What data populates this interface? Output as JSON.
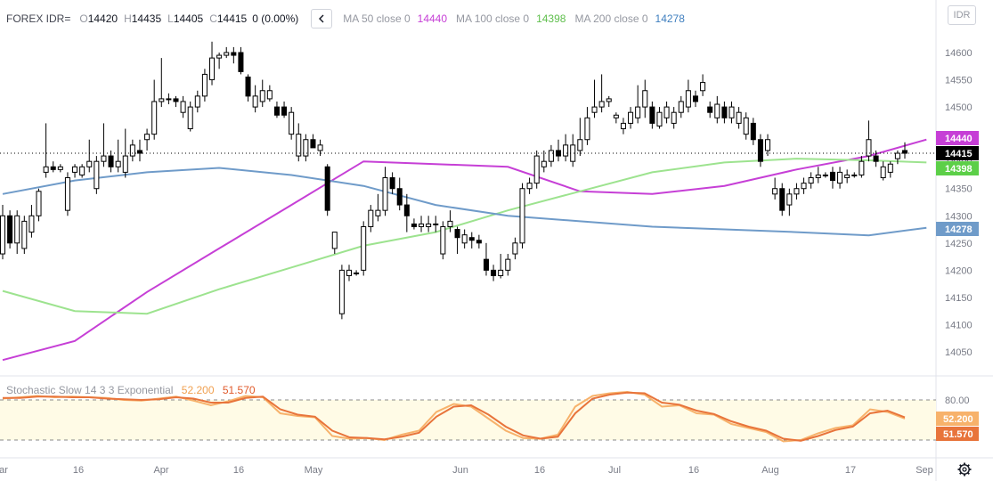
{
  "legend": {
    "symbol": "FOREX IDR=",
    "o_label": "O",
    "o": "14420",
    "h_label": "H",
    "h": "14435",
    "l_label": "L",
    "l": "14405",
    "c_label": "C",
    "c": "14415",
    "change": "0 (0.00%)",
    "collapse_icon": "chevron-left-icon",
    "ma50_label": "MA 50 close 0",
    "ma50_value": "14440",
    "ma100_label": "MA 100 close 0",
    "ma100_value": "14398",
    "ma200_label": "MA 200 close 0",
    "ma200_value": "14278"
  },
  "currency_button": "IDR",
  "stoch_label": "Stochastic Slow 14 3 3 Exponential",
  "stoch_k_value": "52.200",
  "stoch_d_value": "51.570",
  "settings_icon": "gear-icon",
  "colors": {
    "ma50": "#c63fd6",
    "ma100": "#9de38f",
    "ma200": "#6f9bc9",
    "stoch_k": "#f7b26b",
    "stoch_d": "#e8743b",
    "stoch_band": "#fffbe6",
    "last_price": "#000000"
  },
  "chart_data": [
    {
      "type": "candlestick",
      "title": "FOREX IDR=",
      "y_ticks": [
        14050,
        14100,
        14150,
        14200,
        14250,
        14300,
        14350,
        14400,
        14450,
        14500,
        14550,
        14600
      ],
      "ylim": [
        14020,
        14650
      ],
      "x_tick_labels": [
        "ar",
        "16",
        "Apr",
        "16",
        "May",
        "Jun",
        "16",
        "Jul",
        "16",
        "Aug",
        "17",
        "Sep"
      ],
      "last_price": 14415,
      "price_labels": [
        {
          "name": "MA 50",
          "value": 14440
        },
        {
          "name": "last",
          "value": 14415
        },
        {
          "name": "MA 100",
          "value": 14398
        },
        {
          "name": "MA 200",
          "value": 14278
        }
      ],
      "candles": [
        {
          "o": 14230,
          "h": 14320,
          "l": 14220,
          "c": 14300
        },
        {
          "o": 14300,
          "h": 14310,
          "l": 14240,
          "c": 14250
        },
        {
          "o": 14250,
          "h": 14310,
          "l": 14230,
          "c": 14300
        },
        {
          "o": 14240,
          "h": 14300,
          "l": 14230,
          "c": 14290
        },
        {
          "o": 14270,
          "h": 14320,
          "l": 14260,
          "c": 14300
        },
        {
          "o": 14300,
          "h": 14350,
          "l": 14290,
          "c": 14345
        },
        {
          "o": 14380,
          "h": 14470,
          "l": 14370,
          "c": 14390
        },
        {
          "o": 14390,
          "h": 14400,
          "l": 14380,
          "c": 14385
        },
        {
          "o": 14385,
          "h": 14395,
          "l": 14380,
          "c": 14390
        },
        {
          "o": 14310,
          "h": 14380,
          "l": 14300,
          "c": 14370
        },
        {
          "o": 14380,
          "h": 14395,
          "l": 14370,
          "c": 14390
        },
        {
          "o": 14375,
          "h": 14395,
          "l": 14370,
          "c": 14390
        },
        {
          "o": 14390,
          "h": 14440,
          "l": 14380,
          "c": 14400
        },
        {
          "o": 14350,
          "h": 14410,
          "l": 14340,
          "c": 14400
        },
        {
          "o": 14400,
          "h": 14470,
          "l": 14390,
          "c": 14410
        },
        {
          "o": 14410,
          "h": 14420,
          "l": 14380,
          "c": 14390
        },
        {
          "o": 14390,
          "h": 14440,
          "l": 14380,
          "c": 14400
        },
        {
          "o": 14380,
          "h": 14460,
          "l": 14370,
          "c": 14410
        },
        {
          "o": 14410,
          "h": 14440,
          "l": 14400,
          "c": 14430
        },
        {
          "o": 14420,
          "h": 14440,
          "l": 14400,
          "c": 14415
        },
        {
          "o": 14440,
          "h": 14460,
          "l": 14420,
          "c": 14450
        },
        {
          "o": 14450,
          "h": 14550,
          "l": 14440,
          "c": 14510
        },
        {
          "o": 14510,
          "h": 14590,
          "l": 14500,
          "c": 14515
        },
        {
          "o": 14515,
          "h": 14525,
          "l": 14505,
          "c": 14515
        },
        {
          "o": 14515,
          "h": 14520,
          "l": 14500,
          "c": 14510
        },
        {
          "o": 14490,
          "h": 14520,
          "l": 14480,
          "c": 14510
        },
        {
          "o": 14460,
          "h": 14510,
          "l": 14455,
          "c": 14500
        },
        {
          "o": 14500,
          "h": 14530,
          "l": 14490,
          "c": 14520
        },
        {
          "o": 14520,
          "h": 14570,
          "l": 14510,
          "c": 14560
        },
        {
          "o": 14550,
          "h": 14620,
          "l": 14540,
          "c": 14590
        },
        {
          "o": 14590,
          "h": 14600,
          "l": 14570,
          "c": 14595
        },
        {
          "o": 14595,
          "h": 14610,
          "l": 14590,
          "c": 14600
        },
        {
          "o": 14600,
          "h": 14610,
          "l": 14580,
          "c": 14595
        },
        {
          "o": 14600,
          "h": 14610,
          "l": 14560,
          "c": 14565
        },
        {
          "o": 14555,
          "h": 14560,
          "l": 14510,
          "c": 14520
        },
        {
          "o": 14500,
          "h": 14540,
          "l": 14490,
          "c": 14520
        },
        {
          "o": 14510,
          "h": 14550,
          "l": 14500,
          "c": 14530
        },
        {
          "o": 14515,
          "h": 14540,
          "l": 14510,
          "c": 14530
        },
        {
          "o": 14500,
          "h": 14510,
          "l": 14480,
          "c": 14485
        },
        {
          "o": 14500,
          "h": 14510,
          "l": 14480,
          "c": 14485
        },
        {
          "o": 14450,
          "h": 14500,
          "l": 14440,
          "c": 14490
        },
        {
          "o": 14410,
          "h": 14470,
          "l": 14400,
          "c": 14450
        },
        {
          "o": 14410,
          "h": 14450,
          "l": 14400,
          "c": 14440
        },
        {
          "o": 14440,
          "h": 14450,
          "l": 14430,
          "c": 14425
        },
        {
          "o": 14420,
          "h": 14440,
          "l": 14410,
          "c": 14430
        },
        {
          "o": 14390,
          "h": 14395,
          "l": 14300,
          "c": 14310
        },
        {
          "o": 14240,
          "h": 14270,
          "l": 14230,
          "c": 14270
        },
        {
          "o": 14120,
          "h": 14210,
          "l": 14110,
          "c": 14200
        },
        {
          "o": 14190,
          "h": 14210,
          "l": 14180,
          "c": 14200
        },
        {
          "o": 14195,
          "h": 14200,
          "l": 14190,
          "c": 14195
        },
        {
          "o": 14200,
          "h": 14290,
          "l": 14190,
          "c": 14280
        },
        {
          "o": 14280,
          "h": 14320,
          "l": 14270,
          "c": 14310
        },
        {
          "o": 14300,
          "h": 14340,
          "l": 14290,
          "c": 14310
        },
        {
          "o": 14310,
          "h": 14390,
          "l": 14300,
          "c": 14370
        },
        {
          "o": 14370,
          "h": 14380,
          "l": 14340,
          "c": 14350
        },
        {
          "o": 14350,
          "h": 14370,
          "l": 14310,
          "c": 14320
        },
        {
          "o": 14320,
          "h": 14340,
          "l": 14270,
          "c": 14300
        },
        {
          "o": 14285,
          "h": 14295,
          "l": 14275,
          "c": 14280
        },
        {
          "o": 14280,
          "h": 14300,
          "l": 14270,
          "c": 14285
        },
        {
          "o": 14280,
          "h": 14300,
          "l": 14270,
          "c": 14285
        },
        {
          "o": 14285,
          "h": 14300,
          "l": 14270,
          "c": 14285
        },
        {
          "o": 14230,
          "h": 14290,
          "l": 14220,
          "c": 14280
        },
        {
          "o": 14280,
          "h": 14310,
          "l": 14270,
          "c": 14290
        },
        {
          "o": 14275,
          "h": 14280,
          "l": 14230,
          "c": 14260
        },
        {
          "o": 14250,
          "h": 14275,
          "l": 14240,
          "c": 14265
        },
        {
          "o": 14260,
          "h": 14270,
          "l": 14240,
          "c": 14255
        },
        {
          "o": 14255,
          "h": 14265,
          "l": 14240,
          "c": 14250
        },
        {
          "o": 14220,
          "h": 14250,
          "l": 14190,
          "c": 14200
        },
        {
          "o": 14200,
          "h": 14210,
          "l": 14180,
          "c": 14190
        },
        {
          "o": 14190,
          "h": 14230,
          "l": 14185,
          "c": 14200
        },
        {
          "o": 14200,
          "h": 14230,
          "l": 14190,
          "c": 14220
        },
        {
          "o": 14230,
          "h": 14260,
          "l": 14220,
          "c": 14250
        },
        {
          "o": 14250,
          "h": 14360,
          "l": 14240,
          "c": 14350
        },
        {
          "o": 14350,
          "h": 14370,
          "l": 14340,
          "c": 14360
        },
        {
          "o": 14360,
          "h": 14420,
          "l": 14350,
          "c": 14410
        },
        {
          "o": 14390,
          "h": 14420,
          "l": 14380,
          "c": 14400
        },
        {
          "o": 14400,
          "h": 14430,
          "l": 14390,
          "c": 14420
        },
        {
          "o": 14420,
          "h": 14440,
          "l": 14400,
          "c": 14410
        },
        {
          "o": 14410,
          "h": 14450,
          "l": 14400,
          "c": 14430
        },
        {
          "o": 14400,
          "h": 14450,
          "l": 14390,
          "c": 14430
        },
        {
          "o": 14420,
          "h": 14480,
          "l": 14410,
          "c": 14440
        },
        {
          "o": 14440,
          "h": 14500,
          "l": 14430,
          "c": 14480
        },
        {
          "o": 14490,
          "h": 14550,
          "l": 14480,
          "c": 14500
        },
        {
          "o": 14500,
          "h": 14560,
          "l": 14490,
          "c": 14510
        },
        {
          "o": 14510,
          "h": 14520,
          "l": 14500,
          "c": 14515
        },
        {
          "o": 14480,
          "h": 14490,
          "l": 14470,
          "c": 14485
        },
        {
          "o": 14460,
          "h": 14480,
          "l": 14450,
          "c": 14470
        },
        {
          "o": 14470,
          "h": 14500,
          "l": 14460,
          "c": 14490
        },
        {
          "o": 14480,
          "h": 14540,
          "l": 14470,
          "c": 14500
        },
        {
          "o": 14500,
          "h": 14550,
          "l": 14480,
          "c": 14530
        },
        {
          "o": 14500,
          "h": 14510,
          "l": 14460,
          "c": 14470
        },
        {
          "o": 14465,
          "h": 14500,
          "l": 14460,
          "c": 14490
        },
        {
          "o": 14480,
          "h": 14510,
          "l": 14470,
          "c": 14500
        },
        {
          "o": 14470,
          "h": 14500,
          "l": 14460,
          "c": 14490
        },
        {
          "o": 14490,
          "h": 14520,
          "l": 14480,
          "c": 14510
        },
        {
          "o": 14500,
          "h": 14550,
          "l": 14490,
          "c": 14530
        },
        {
          "o": 14520,
          "h": 14530,
          "l": 14500,
          "c": 14510
        },
        {
          "o": 14530,
          "h": 14560,
          "l": 14520,
          "c": 14545
        },
        {
          "o": 14500,
          "h": 14510,
          "l": 14480,
          "c": 14490
        },
        {
          "o": 14480,
          "h": 14520,
          "l": 14470,
          "c": 14505
        },
        {
          "o": 14500,
          "h": 14510,
          "l": 14470,
          "c": 14480
        },
        {
          "o": 14480,
          "h": 14510,
          "l": 14470,
          "c": 14500
        },
        {
          "o": 14470,
          "h": 14500,
          "l": 14460,
          "c": 14490
        },
        {
          "o": 14450,
          "h": 14490,
          "l": 14440,
          "c": 14480
        },
        {
          "o": 14470,
          "h": 14480,
          "l": 14430,
          "c": 14440
        },
        {
          "o": 14440,
          "h": 14450,
          "l": 14390,
          "c": 14400
        },
        {
          "o": 14420,
          "h": 14450,
          "l": 14410,
          "c": 14440
        },
        {
          "o": 14340,
          "h": 14370,
          "l": 14330,
          "c": 14350
        },
        {
          "o": 14350,
          "h": 14360,
          "l": 14300,
          "c": 14310
        },
        {
          "o": 14320,
          "h": 14350,
          "l": 14300,
          "c": 14340
        },
        {
          "o": 14340,
          "h": 14360,
          "l": 14330,
          "c": 14350
        },
        {
          "o": 14350,
          "h": 14370,
          "l": 14340,
          "c": 14360
        },
        {
          "o": 14360,
          "h": 14380,
          "l": 14350,
          "c": 14370
        },
        {
          "o": 14370,
          "h": 14390,
          "l": 14360,
          "c": 14375
        },
        {
          "o": 14375,
          "h": 14380,
          "l": 14370,
          "c": 14375
        },
        {
          "o": 14380,
          "h": 14390,
          "l": 14350,
          "c": 14365
        },
        {
          "o": 14360,
          "h": 14390,
          "l": 14350,
          "c": 14380
        },
        {
          "o": 14370,
          "h": 14385,
          "l": 14360,
          "c": 14375
        },
        {
          "o": 14375,
          "h": 14380,
          "l": 14370,
          "c": 14375
        },
        {
          "o": 14375,
          "h": 14410,
          "l": 14370,
          "c": 14400
        },
        {
          "o": 14410,
          "h": 14475,
          "l": 14400,
          "c": 14440
        },
        {
          "o": 14410,
          "h": 14420,
          "l": 14390,
          "c": 14400
        },
        {
          "o": 14370,
          "h": 14400,
          "l": 14365,
          "c": 14390
        },
        {
          "o": 14380,
          "h": 14400,
          "l": 14370,
          "c": 14395
        },
        {
          "o": 14405,
          "h": 14420,
          "l": 14395,
          "c": 14415
        },
        {
          "o": 14420,
          "h": 14435,
          "l": 14405,
          "c": 14415
        }
      ],
      "series": [
        {
          "name": "MA 50 close 0",
          "x": [
            0,
            10,
            20,
            30,
            40,
            50,
            60,
            70,
            80,
            90,
            100,
            110,
            120,
            128
          ],
          "values": [
            14035,
            14070,
            14160,
            14240,
            14320,
            14400,
            14395,
            14390,
            14345,
            14340,
            14355,
            14385,
            14410,
            14440
          ]
        },
        {
          "name": "MA 100 close 0",
          "x": [
            0,
            10,
            20,
            30,
            40,
            50,
            60,
            70,
            80,
            90,
            100,
            110,
            120,
            128
          ],
          "values": [
            14162,
            14125,
            14120,
            14165,
            14205,
            14245,
            14270,
            14310,
            14345,
            14380,
            14398,
            14405,
            14402,
            14398
          ]
        },
        {
          "name": "MA 200 close 0",
          "x": [
            0,
            10,
            20,
            30,
            40,
            50,
            60,
            70,
            80,
            90,
            100,
            110,
            120,
            128
          ],
          "values": [
            14340,
            14365,
            14380,
            14388,
            14375,
            14355,
            14320,
            14300,
            14290,
            14280,
            14275,
            14270,
            14264,
            14278
          ]
        }
      ]
    },
    {
      "type": "line",
      "title": "Stochastic Slow 14 3 3 Exponential",
      "y_ticks": [
        80
      ],
      "bands": [
        20,
        80
      ],
      "ylim": [
        10,
        100
      ],
      "series": [
        {
          "name": "52.200",
          "values": [
            82,
            84,
            86,
            84,
            85,
            84,
            83,
            80,
            79,
            82,
            85,
            79,
            72,
            78,
            86,
            84,
            60,
            56,
            54,
            26,
            22,
            23,
            20,
            28,
            34,
            62,
            74,
            70,
            52,
            34,
            23,
            22,
            28,
            70,
            86,
            90,
            92,
            88,
            70,
            72,
            60,
            58,
            44,
            38,
            32,
            18,
            20,
            30,
            38,
            42,
            66,
            62,
            52
          ]
        },
        {
          "name": "51.570",
          "values": [
            83,
            83,
            85,
            85,
            84,
            84,
            82,
            81,
            80,
            81,
            84,
            82,
            76,
            76,
            83,
            85,
            66,
            58,
            55,
            34,
            24,
            23,
            21,
            25,
            31,
            55,
            70,
            72,
            58,
            40,
            27,
            22,
            25,
            60,
            82,
            88,
            91,
            90,
            76,
            73,
            64,
            59,
            48,
            40,
            34,
            22,
            19,
            26,
            35,
            40,
            60,
            64,
            54
          ]
        }
      ]
    }
  ]
}
